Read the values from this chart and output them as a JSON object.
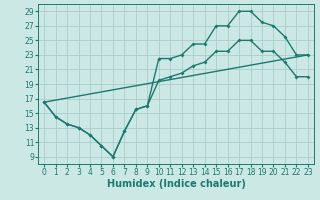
{
  "title": "",
  "xlabel": "Humidex (Indice chaleur)",
  "ylabel": "",
  "background_color": "#cce8e4",
  "grid_color": "#aaccca",
  "line_color": "#1a7a6e",
  "xlim": [
    -0.5,
    23.5
  ],
  "ylim": [
    8.0,
    30.0
  ],
  "xticks": [
    0,
    1,
    2,
    3,
    4,
    5,
    6,
    7,
    8,
    9,
    10,
    11,
    12,
    13,
    14,
    15,
    16,
    17,
    18,
    19,
    20,
    21,
    22,
    23
  ],
  "yticks": [
    9,
    11,
    13,
    15,
    17,
    19,
    21,
    23,
    25,
    27,
    29
  ],
  "series1_x": [
    0,
    1,
    2,
    3,
    4,
    5,
    6,
    7,
    8,
    9,
    10,
    11,
    12,
    13,
    14,
    15,
    16,
    17,
    18,
    19,
    20,
    21,
    22,
    23
  ],
  "series1_y": [
    16.5,
    14.5,
    13.5,
    13.0,
    12.0,
    10.5,
    9.0,
    12.5,
    15.5,
    16.0,
    22.5,
    22.5,
    23.0,
    24.5,
    24.5,
    27.0,
    27.0,
    29.0,
    29.0,
    27.5,
    27.0,
    25.5,
    23.0,
    23.0
  ],
  "series2_x": [
    0,
    1,
    2,
    3,
    4,
    5,
    6,
    7,
    8,
    9,
    10,
    11,
    12,
    13,
    14,
    15,
    16,
    17,
    18,
    19,
    20,
    21,
    22,
    23
  ],
  "series2_y": [
    16.5,
    14.5,
    13.5,
    13.0,
    12.0,
    10.5,
    9.0,
    12.5,
    15.5,
    16.0,
    19.5,
    20.0,
    20.5,
    21.5,
    22.0,
    23.5,
    23.5,
    25.0,
    25.0,
    23.5,
    23.5,
    22.0,
    20.0,
    20.0
  ],
  "series3_x": [
    0,
    23
  ],
  "series3_y": [
    16.5,
    23.0
  ],
  "font_size_xlabel": 7,
  "marker": "D",
  "marker_size": 2,
  "linewidth": 1.0,
  "tick_fontsize": 5.5
}
